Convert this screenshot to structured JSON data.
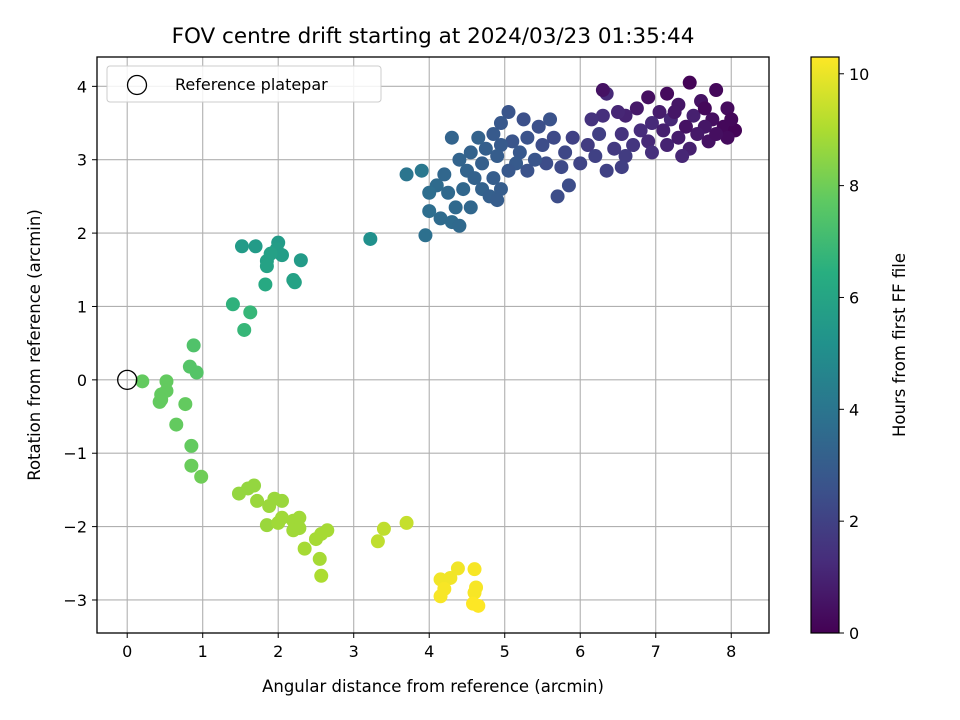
{
  "chart_data": {
    "type": "scatter",
    "title": "FOV centre drift starting at 2024/03/23 01:35:44",
    "xlabel": "Angular distance from reference (arcmin)",
    "ylabel": "Rotation from reference (arcmin)",
    "xlim": [
      -0.4,
      8.5
    ],
    "ylim": [
      -3.45,
      4.4
    ],
    "xticks": [
      "0",
      "1",
      "2",
      "3",
      "4",
      "5",
      "6",
      "7",
      "8"
    ],
    "yticks": [
      "−3",
      "−2",
      "−1",
      "0",
      "1",
      "2",
      "3",
      "4"
    ],
    "grid": true,
    "colormap": "viridis",
    "colorbar": {
      "label": "Hours from first FF file",
      "range": [
        0,
        10.3
      ],
      "ticks": [
        "0",
        "2",
        "4",
        "6",
        "8",
        "10"
      ]
    },
    "legend": {
      "position": "top-left",
      "entries": [
        "Reference platepar"
      ]
    },
    "reference_point": {
      "x": 0,
      "y": 0
    },
    "points": [
      [
        7.45,
        4.05,
        0.1
      ],
      [
        7.8,
        3.95,
        0.2
      ],
      [
        7.15,
        3.9,
        0.3
      ],
      [
        6.9,
        3.85,
        0.4
      ],
      [
        7.6,
        3.8,
        0.5
      ],
      [
        7.3,
        3.75,
        0.6
      ],
      [
        7.95,
        3.7,
        0.3
      ],
      [
        6.75,
        3.7,
        0.7
      ],
      [
        7.05,
        3.65,
        0.8
      ],
      [
        7.5,
        3.6,
        0.9
      ],
      [
        7.75,
        3.55,
        0.4
      ],
      [
        6.6,
        3.6,
        1.0
      ],
      [
        7.2,
        3.55,
        1.1
      ],
      [
        6.95,
        3.5,
        1.2
      ],
      [
        7.4,
        3.45,
        0.5
      ],
      [
        7.65,
        3.45,
        0.6
      ],
      [
        7.9,
        3.45,
        0.2
      ],
      [
        6.8,
        3.4,
        1.3
      ],
      [
        7.1,
        3.4,
        0.9
      ],
      [
        7.55,
        3.35,
        0.7
      ],
      [
        8.05,
        3.4,
        0.1
      ],
      [
        6.55,
        3.35,
        1.5
      ],
      [
        7.3,
        3.3,
        0.8
      ],
      [
        6.9,
        3.25,
        1.2
      ],
      [
        7.7,
        3.25,
        0.5
      ],
      [
        7.95,
        3.3,
        0.3
      ],
      [
        6.7,
        3.2,
        1.6
      ],
      [
        7.15,
        3.2,
        1.0
      ],
      [
        7.45,
        3.15,
        0.9
      ],
      [
        6.45,
        3.15,
        1.7
      ],
      [
        6.95,
        3.1,
        1.4
      ],
      [
        7.35,
        3.05,
        1.1
      ],
      [
        6.6,
        3.05,
        1.8
      ],
      [
        7.8,
        3.35,
        0.4
      ],
      [
        7.25,
        3.65,
        0.6
      ],
      [
        6.5,
        3.65,
        1.1
      ],
      [
        6.3,
        3.6,
        1.4
      ],
      [
        6.35,
        3.9,
        1.2
      ],
      [
        6.15,
        3.55,
        1.5
      ],
      [
        6.25,
        3.35,
        1.9
      ],
      [
        6.1,
        3.2,
        1.8
      ],
      [
        5.9,
        3.3,
        2.0
      ],
      [
        6.2,
        3.05,
        2.0
      ],
      [
        6.0,
        2.95,
        2.1
      ],
      [
        6.35,
        2.85,
        2.0
      ],
      [
        6.55,
        2.9,
        1.9
      ],
      [
        5.8,
        3.1,
        2.2
      ],
      [
        5.65,
        3.3,
        2.3
      ],
      [
        5.5,
        3.2,
        2.4
      ],
      [
        5.75,
        2.9,
        2.3
      ],
      [
        5.55,
        2.95,
        2.4
      ],
      [
        5.3,
        3.3,
        2.6
      ],
      [
        5.45,
        3.45,
        2.5
      ],
      [
        5.6,
        3.55,
        2.6
      ],
      [
        5.25,
        3.55,
        2.5
      ],
      [
        5.05,
        3.65,
        2.7
      ],
      [
        4.95,
        3.5,
        2.8
      ],
      [
        4.85,
        3.35,
        2.9
      ],
      [
        5.1,
        3.25,
        2.7
      ],
      [
        4.95,
        3.2,
        2.9
      ],
      [
        5.2,
        3.1,
        2.8
      ],
      [
        5.4,
        3.0,
        2.7
      ],
      [
        5.15,
        2.95,
        2.9
      ],
      [
        4.9,
        3.05,
        3.0
      ],
      [
        4.75,
        3.15,
        3.1
      ],
      [
        4.65,
        3.3,
        3.2
      ],
      [
        4.55,
        3.1,
        3.2
      ],
      [
        4.7,
        2.95,
        3.1
      ],
      [
        4.5,
        2.85,
        3.3
      ],
      [
        4.6,
        2.75,
        3.2
      ],
      [
        4.85,
        2.75,
        3.0
      ],
      [
        5.05,
        2.85,
        2.8
      ],
      [
        5.3,
        2.85,
        2.6
      ],
      [
        4.4,
        3.0,
        3.3
      ],
      [
        4.3,
        3.3,
        3.3
      ],
      [
        4.45,
        2.6,
        3.4
      ],
      [
        4.7,
        2.6,
        3.2
      ],
      [
        4.95,
        2.6,
        3.0
      ],
      [
        4.25,
        2.55,
        3.5
      ],
      [
        4.1,
        2.65,
        3.6
      ],
      [
        4.0,
        2.55,
        3.7
      ],
      [
        4.2,
        2.8,
        3.4
      ],
      [
        4.35,
        2.35,
        3.5
      ],
      [
        4.15,
        2.2,
        3.6
      ],
      [
        4.0,
        2.3,
        3.7
      ],
      [
        4.3,
        2.15,
        3.6
      ],
      [
        4.4,
        2.1,
        3.5
      ],
      [
        4.55,
        2.35,
        3.4
      ],
      [
        3.95,
        1.97,
        3.8
      ],
      [
        3.7,
        2.8,
        4.0
      ],
      [
        3.9,
        2.85,
        4.1
      ],
      [
        4.8,
        2.5,
        3.1
      ],
      [
        4.9,
        2.45,
        3.0
      ],
      [
        5.7,
        2.5,
        2.4
      ],
      [
        5.85,
        2.65,
        2.4
      ],
      [
        6.3,
        3.95,
        0.5
      ],
      [
        7.65,
        3.7,
        0.2
      ],
      [
        8.0,
        3.55,
        0.2
      ],
      [
        3.22,
        1.92,
        5.1
      ],
      [
        1.52,
        1.82,
        5.6
      ],
      [
        1.7,
        1.82,
        5.6
      ],
      [
        2.0,
        1.87,
        5.6
      ],
      [
        1.98,
        1.78,
        5.7
      ],
      [
        2.05,
        1.7,
        5.7
      ],
      [
        1.85,
        1.62,
        5.8
      ],
      [
        1.9,
        1.72,
        5.8
      ],
      [
        2.3,
        1.63,
        5.6
      ],
      [
        1.85,
        1.55,
        5.9
      ],
      [
        2.2,
        1.36,
        5.8
      ],
      [
        2.22,
        1.33,
        5.9
      ],
      [
        1.83,
        1.3,
        6.2
      ],
      [
        1.4,
        1.03,
        6.6
      ],
      [
        1.63,
        0.92,
        6.8
      ],
      [
        1.55,
        0.68,
        6.8
      ],
      [
        0.88,
        0.47,
        7.4
      ],
      [
        0.83,
        0.18,
        7.5
      ],
      [
        0.92,
        0.1,
        7.5
      ],
      [
        0.2,
        -0.02,
        7.8
      ],
      [
        0.52,
        -0.02,
        7.8
      ],
      [
        0.52,
        -0.15,
        7.8
      ],
      [
        0.45,
        -0.2,
        7.8
      ],
      [
        0.45,
        -0.27,
        7.8
      ],
      [
        0.43,
        -0.3,
        7.8
      ],
      [
        0.77,
        -0.33,
        7.8
      ],
      [
        0.65,
        -0.61,
        7.8
      ],
      [
        0.85,
        -0.9,
        7.8
      ],
      [
        0.85,
        -1.17,
        7.9
      ],
      [
        0.98,
        -1.32,
        8.0
      ],
      [
        1.48,
        -1.55,
        8.6
      ],
      [
        1.6,
        -1.48,
        8.6
      ],
      [
        1.68,
        -1.44,
        8.6
      ],
      [
        1.72,
        -1.65,
        8.7
      ],
      [
        1.95,
        -1.62,
        8.7
      ],
      [
        2.05,
        -1.65,
        8.7
      ],
      [
        1.85,
        -1.98,
        8.7
      ],
      [
        1.88,
        -1.72,
        8.7
      ],
      [
        2.05,
        -1.88,
        8.8
      ],
      [
        2.0,
        -1.95,
        8.8
      ],
      [
        2.2,
        -1.92,
        8.8
      ],
      [
        2.28,
        -1.88,
        8.8
      ],
      [
        2.2,
        -2.05,
        8.8
      ],
      [
        2.28,
        -2.02,
        8.8
      ],
      [
        2.35,
        -2.3,
        8.9
      ],
      [
        2.5,
        -2.17,
        8.9
      ],
      [
        2.57,
        -2.1,
        8.9
      ],
      [
        2.65,
        -2.05,
        8.9
      ],
      [
        2.55,
        -2.44,
        8.9
      ],
      [
        2.57,
        -2.67,
        9.0
      ],
      [
        3.32,
        -2.2,
        9.3
      ],
      [
        3.4,
        -2.03,
        9.3
      ],
      [
        3.7,
        -1.95,
        9.4
      ],
      [
        4.15,
        -2.72,
        10.1
      ],
      [
        4.28,
        -2.7,
        10.1
      ],
      [
        4.38,
        -2.57,
        10.1
      ],
      [
        4.6,
        -2.58,
        10.2
      ],
      [
        4.2,
        -2.85,
        10.2
      ],
      [
        4.15,
        -2.95,
        10.2
      ],
      [
        4.62,
        -2.83,
        10.2
      ],
      [
        4.6,
        -2.9,
        10.2
      ],
      [
        4.58,
        -3.05,
        10.3
      ],
      [
        4.65,
        -3.08,
        10.3
      ]
    ]
  }
}
